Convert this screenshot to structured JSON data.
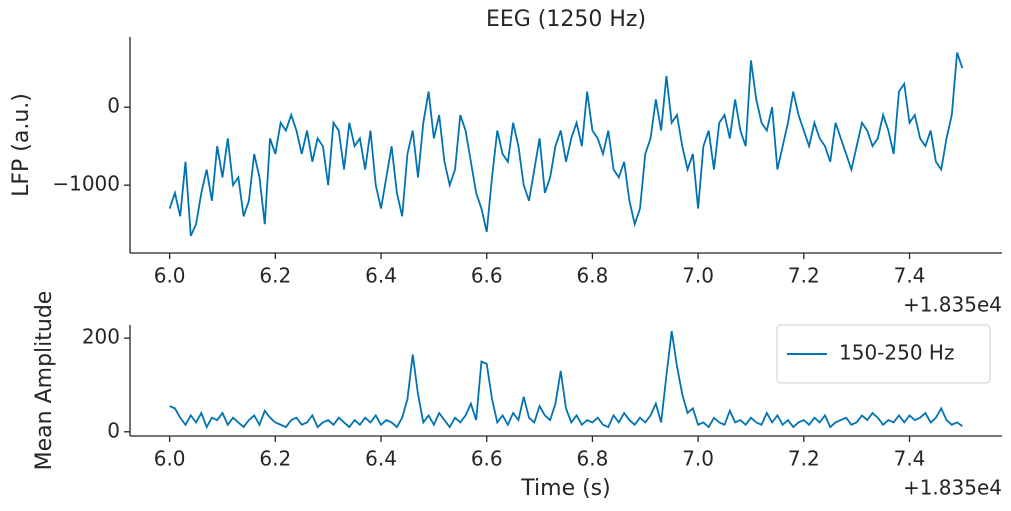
{
  "chart_data": [
    {
      "type": "line",
      "title": "EEG (1250 Hz)",
      "ylabel": "LFP (a.u.)",
      "x_offset_label": "+1.835e4",
      "x": [
        6,
        6.01,
        6.02,
        6.03,
        6.04,
        6.05,
        6.06,
        6.07,
        6.08,
        6.09,
        6.1,
        6.11,
        6.12,
        6.13,
        6.14,
        6.15,
        6.16,
        6.17,
        6.18,
        6.19,
        6.2,
        6.21,
        6.22,
        6.23,
        6.24,
        6.25,
        6.26,
        6.27,
        6.28,
        6.29,
        6.3,
        6.31,
        6.32,
        6.33,
        6.34,
        6.35,
        6.36,
        6.37,
        6.38,
        6.39,
        6.4,
        6.41,
        6.42,
        6.43,
        6.44,
        6.45,
        6.46,
        6.47,
        6.48,
        6.49,
        6.5,
        6.51,
        6.52,
        6.53,
        6.54,
        6.55,
        6.56,
        6.57,
        6.58,
        6.59,
        6.6,
        6.61,
        6.62,
        6.63,
        6.64,
        6.65,
        6.66,
        6.67,
        6.68,
        6.69,
        6.7,
        6.71,
        6.72,
        6.73,
        6.74,
        6.75,
        6.76,
        6.77,
        6.78,
        6.79,
        6.8,
        6.81,
        6.82,
        6.83,
        6.84,
        6.85,
        6.86,
        6.87,
        6.88,
        6.89,
        6.9,
        6.91,
        6.92,
        6.93,
        6.94,
        6.95,
        6.96,
        6.97,
        6.98,
        6.99,
        7,
        7.01,
        7.02,
        7.03,
        7.04,
        7.05,
        7.06,
        7.07,
        7.08,
        7.09,
        7.1,
        7.11,
        7.12,
        7.13,
        7.14,
        7.15,
        7.16,
        7.17,
        7.18,
        7.19,
        7.2,
        7.21,
        7.22,
        7.23,
        7.24,
        7.25,
        7.26,
        7.27,
        7.28,
        7.29,
        7.3,
        7.31,
        7.32,
        7.33,
        7.34,
        7.35,
        7.36,
        7.37,
        7.38,
        7.39,
        7.4,
        7.41,
        7.42,
        7.43,
        7.44,
        7.45,
        7.46,
        7.47,
        7.48,
        7.49,
        7.5
      ],
      "series": [
        {
          "color": "#0173b2",
          "values": [
            -1300,
            -1100,
            -1400,
            -700,
            -1650,
            -1500,
            -1100,
            -800,
            -1200,
            -500,
            -900,
            -400,
            -1000,
            -900,
            -1400,
            -1200,
            -600,
            -900,
            -1500,
            -400,
            -600,
            -200,
            -300,
            -100,
            -300,
            -600,
            -300,
            -700,
            -400,
            -500,
            -1000,
            -200,
            -300,
            -800,
            -200,
            -500,
            -400,
            -800,
            -300,
            -1000,
            -1300,
            -900,
            -500,
            -1100,
            -1400,
            -600,
            -300,
            -900,
            -200,
            200,
            -400,
            -100,
            -700,
            -1000,
            -800,
            -100,
            -300,
            -700,
            -1100,
            -1300,
            -1600,
            -900,
            -300,
            -600,
            -700,
            -200,
            -500,
            -1000,
            -1200,
            -800,
            -400,
            -1100,
            -900,
            -500,
            -300,
            -700,
            -400,
            -200,
            -500,
            200,
            -300,
            -400,
            -600,
            -300,
            -800,
            -900,
            -700,
            -1200,
            -1500,
            -1300,
            -600,
            -400,
            100,
            -300,
            400,
            -200,
            -100,
            -500,
            -800,
            -600,
            -1300,
            -500,
            -300,
            -800,
            -200,
            -100,
            -400,
            100,
            -300,
            -500,
            600,
            100,
            -200,
            -300,
            0,
            -800,
            -500,
            -200,
            200,
            -100,
            -300,
            -500,
            -200,
            -400,
            -500,
            -700,
            -200,
            -400,
            -600,
            -800,
            -500,
            -200,
            -300,
            -500,
            -400,
            -100,
            -300,
            -600,
            200,
            300,
            -200,
            -100,
            -400,
            -500,
            -300,
            -700,
            -800,
            -400,
            -100,
            700,
            500
          ]
        }
      ],
      "xlim": [
        5.925,
        7.575
      ],
      "ylim": [
        -1870,
        900
      ],
      "xticks": [
        {
          "value": 6,
          "label": "6.0"
        },
        {
          "value": 6.2,
          "label": "6.2"
        },
        {
          "value": 6.4,
          "label": "6.4"
        },
        {
          "value": 6.6,
          "label": "6.6"
        },
        {
          "value": 6.8,
          "label": "6.8"
        },
        {
          "value": 7,
          "label": "7.0"
        },
        {
          "value": 7.2,
          "label": "7.2"
        },
        {
          "value": 7.4,
          "label": "7.4"
        }
      ],
      "yticks": [
        {
          "value": -1000,
          "label": "−1000"
        },
        0
      ]
    },
    {
      "type": "line",
      "xlabel": "Time (s)",
      "ylabel": "Mean Amplitude",
      "x_offset_label": "+1.835e4",
      "legend": "upper right",
      "x": [
        6,
        6.01,
        6.02,
        6.03,
        6.04,
        6.05,
        6.06,
        6.07,
        6.08,
        6.09,
        6.1,
        6.11,
        6.12,
        6.13,
        6.14,
        6.15,
        6.16,
        6.17,
        6.18,
        6.19,
        6.2,
        6.21,
        6.22,
        6.23,
        6.24,
        6.25,
        6.26,
        6.27,
        6.28,
        6.29,
        6.3,
        6.31,
        6.32,
        6.33,
        6.34,
        6.35,
        6.36,
        6.37,
        6.38,
        6.39,
        6.4,
        6.41,
        6.42,
        6.43,
        6.44,
        6.45,
        6.46,
        6.47,
        6.48,
        6.49,
        6.5,
        6.51,
        6.52,
        6.53,
        6.54,
        6.55,
        6.56,
        6.57,
        6.58,
        6.59,
        6.6,
        6.61,
        6.62,
        6.63,
        6.64,
        6.65,
        6.66,
        6.67,
        6.68,
        6.69,
        6.7,
        6.71,
        6.72,
        6.73,
        6.74,
        6.75,
        6.76,
        6.77,
        6.78,
        6.79,
        6.8,
        6.81,
        6.82,
        6.83,
        6.84,
        6.85,
        6.86,
        6.87,
        6.88,
        6.89,
        6.9,
        6.91,
        6.92,
        6.93,
        6.94,
        6.95,
        6.96,
        6.97,
        6.98,
        6.99,
        7,
        7.01,
        7.02,
        7.03,
        7.04,
        7.05,
        7.06,
        7.07,
        7.08,
        7.09,
        7.1,
        7.11,
        7.12,
        7.13,
        7.14,
        7.15,
        7.16,
        7.17,
        7.18,
        7.19,
        7.2,
        7.21,
        7.22,
        7.23,
        7.24,
        7.25,
        7.26,
        7.27,
        7.28,
        7.29,
        7.3,
        7.31,
        7.32,
        7.33,
        7.34,
        7.35,
        7.36,
        7.37,
        7.38,
        7.39,
        7.4,
        7.41,
        7.42,
        7.43,
        7.44,
        7.45,
        7.46,
        7.47,
        7.48,
        7.49,
        7.5
      ],
      "series": [
        {
          "name": "150-250 Hz",
          "color": "#0173b2",
          "values": [
            55,
            50,
            30,
            15,
            35,
            20,
            40,
            10,
            30,
            25,
            40,
            15,
            30,
            20,
            10,
            25,
            35,
            15,
            45,
            30,
            20,
            15,
            10,
            25,
            30,
            15,
            20,
            35,
            10,
            20,
            25,
            15,
            30,
            20,
            10,
            25,
            15,
            30,
            20,
            35,
            15,
            25,
            20,
            10,
            30,
            70,
            165,
            80,
            20,
            35,
            15,
            40,
            25,
            10,
            30,
            20,
            35,
            60,
            25,
            150,
            145,
            70,
            20,
            35,
            15,
            40,
            25,
            75,
            30,
            20,
            55,
            35,
            25,
            60,
            130,
            50,
            20,
            35,
            15,
            25,
            20,
            30,
            15,
            10,
            35,
            20,
            40,
            25,
            15,
            30,
            20,
            35,
            60,
            20,
            120,
            215,
            140,
            80,
            40,
            50,
            15,
            20,
            10,
            30,
            20,
            15,
            45,
            20,
            25,
            15,
            30,
            20,
            15,
            40,
            20,
            35,
            15,
            25,
            10,
            20,
            25,
            15,
            30,
            20,
            35,
            10,
            20,
            25,
            30,
            15,
            20,
            35,
            25,
            40,
            30,
            15,
            25,
            20,
            35,
            20,
            35,
            25,
            30,
            40,
            20,
            30,
            50,
            25,
            15,
            20,
            12
          ]
        }
      ],
      "xlim": [
        5.925,
        7.575
      ],
      "ylim": [
        -9,
        228
      ],
      "xticks": [
        {
          "value": 6,
          "label": "6.0"
        },
        {
          "value": 6.2,
          "label": "6.2"
        },
        {
          "value": 6.4,
          "label": "6.4"
        },
        {
          "value": 6.6,
          "label": "6.6"
        },
        {
          "value": 6.8,
          "label": "6.8"
        },
        {
          "value": 7,
          "label": "7.0"
        },
        {
          "value": 7.2,
          "label": "7.2"
        },
        {
          "value": 7.4,
          "label": "7.4"
        }
      ],
      "yticks": [
        0,
        200
      ]
    }
  ]
}
